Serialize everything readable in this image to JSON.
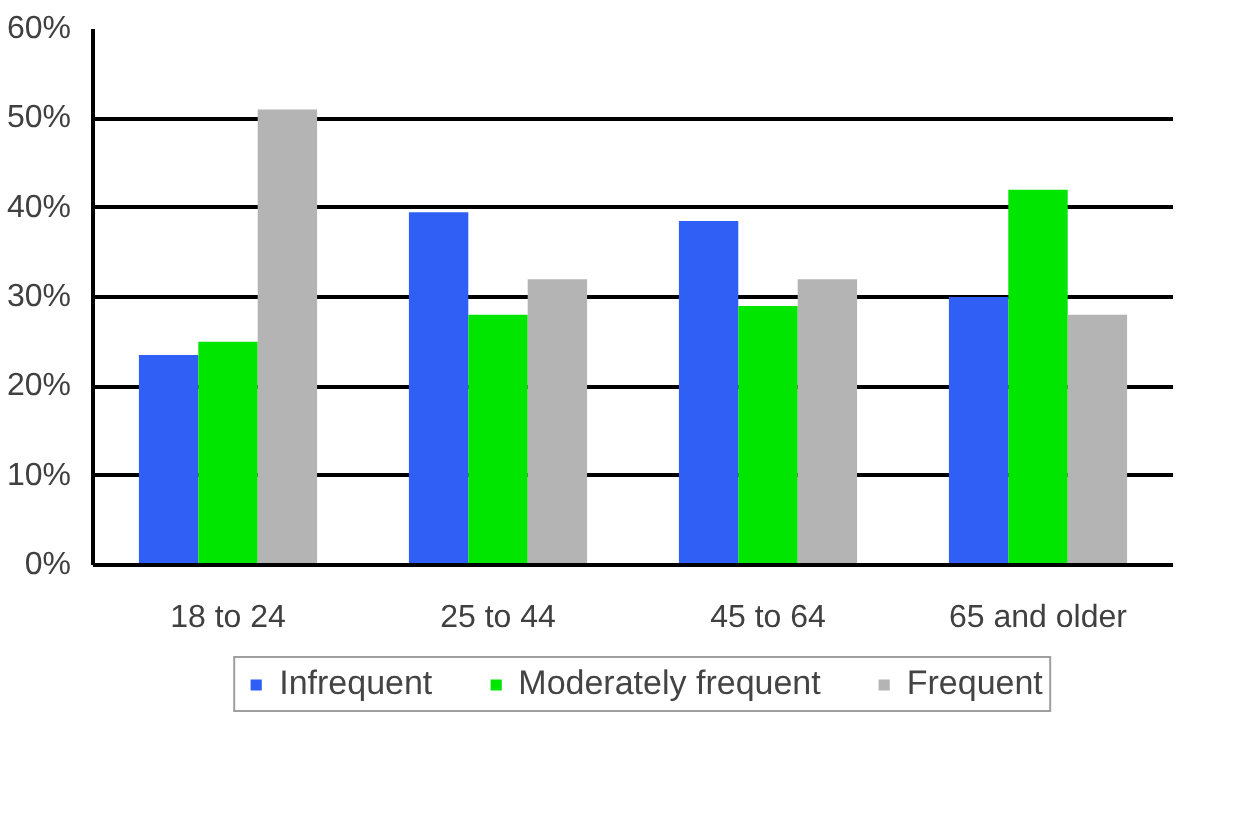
{
  "chart_data": {
    "type": "bar",
    "categories": [
      "18 to 24",
      "25 to 44",
      "45 to 64",
      "65 and older"
    ],
    "series": [
      {
        "name": "Infrequent",
        "color": "#2f5ff5",
        "values": [
          23.5,
          39.5,
          38.5,
          30
        ]
      },
      {
        "name": "Moderately frequent",
        "color": "#00e600",
        "values": [
          25,
          28,
          29,
          42
        ]
      },
      {
        "name": "Frequent",
        "color": "#b4b4b4",
        "values": [
          51,
          32,
          32,
          28
        ]
      }
    ],
    "ylim": [
      0,
      60
    ],
    "yticks": [
      {
        "value": 0,
        "label": "0%"
      },
      {
        "value": 10,
        "label": "10%"
      },
      {
        "value": 20,
        "label": "20%"
      },
      {
        "value": 30,
        "label": "30%"
      },
      {
        "value": 40,
        "label": "40%"
      },
      {
        "value": 50,
        "label": "50%"
      },
      {
        "value": 60,
        "label": "60%"
      }
    ],
    "grid": "y",
    "legend": "bottom"
  }
}
